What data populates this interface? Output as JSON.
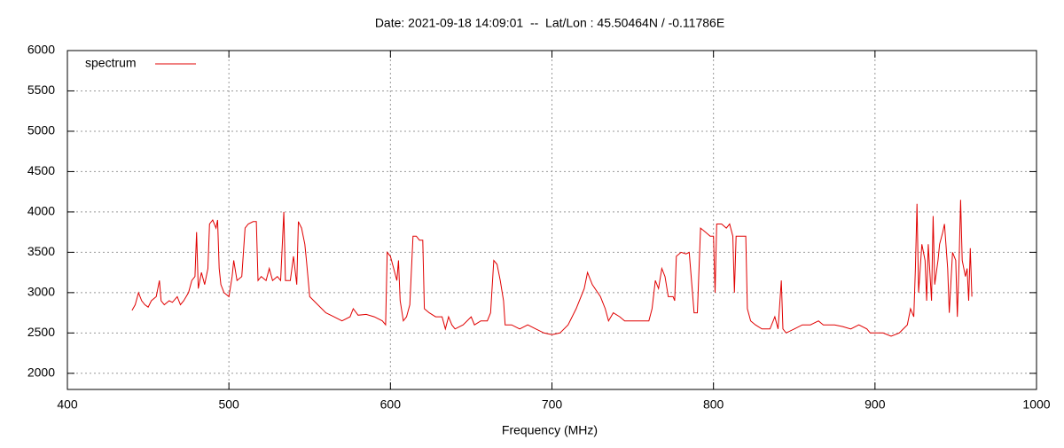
{
  "chart_data": {
    "type": "line",
    "title": "Date: 2021-09-18 14:09:01  --  Lat/Lon : 45.50464N / -0.11786E",
    "x_label": "Frequency (MHz)",
    "xlim": [
      400,
      1000
    ],
    "xticks": [
      400,
      500,
      600,
      700,
      800,
      900,
      1000
    ],
    "ylim": [
      1800,
      6000
    ],
    "yticks": [
      2000,
      2500,
      3000,
      3500,
      4000,
      4500,
      5000,
      5500,
      6000
    ],
    "grid": true,
    "legend": "top-left",
    "x": [
      440,
      442,
      444,
      446,
      448,
      450,
      452,
      455,
      457,
      458,
      460,
      463,
      465,
      468,
      470,
      472,
      475,
      477,
      479,
      480,
      481,
      483,
      485,
      487,
      488,
      490,
      492,
      493,
      494,
      495,
      497,
      500,
      502,
      503,
      505,
      508,
      510,
      512,
      515,
      517,
      518,
      520,
      523,
      525,
      527,
      530,
      532,
      534,
      535,
      538,
      540,
      542,
      543,
      545,
      547,
      548,
      550,
      555,
      560,
      565,
      570,
      575,
      577,
      580,
      585,
      590,
      595,
      597,
      598,
      600,
      602,
      604,
      605,
      606,
      608,
      610,
      612,
      614,
      616,
      618,
      620,
      621,
      624,
      628,
      632,
      634,
      636,
      638,
      640,
      645,
      650,
      652,
      656,
      660,
      662,
      664,
      666,
      668,
      670,
      671,
      675,
      680,
      685,
      690,
      695,
      700,
      705,
      710,
      715,
      720,
      722,
      725,
      730,
      733,
      735,
      738,
      742,
      745,
      750,
      755,
      760,
      762,
      764,
      766,
      768,
      770,
      772,
      775,
      776,
      777,
      780,
      783,
      785,
      787,
      788,
      790,
      792,
      795,
      798,
      800,
      801,
      802,
      805,
      808,
      810,
      812,
      813,
      814,
      818,
      820,
      821,
      823,
      826,
      830,
      835,
      838,
      840,
      842,
      843,
      845,
      850,
      855,
      860,
      865,
      868,
      875,
      880,
      885,
      890,
      895,
      897,
      900,
      905,
      910,
      915,
      920,
      922,
      924,
      925,
      926,
      927,
      929,
      931,
      932,
      933,
      935,
      936,
      937,
      939,
      940,
      942,
      943,
      945,
      946,
      948,
      950,
      951,
      952,
      953,
      954,
      956,
      957,
      958,
      959,
      960
    ],
    "series": [
      {
        "name": "spectrum",
        "color": "#e00000",
        "values": [
          2780,
          2850,
          3000,
          2900,
          2850,
          2820,
          2900,
          2950,
          3150,
          2900,
          2850,
          2900,
          2880,
          2950,
          2850,
          2900,
          3000,
          3150,
          3200,
          3750,
          3050,
          3250,
          3100,
          3300,
          3850,
          3900,
          3800,
          3900,
          3300,
          3100,
          3000,
          2950,
          3200,
          3400,
          3150,
          3200,
          3800,
          3850,
          3880,
          3880,
          3150,
          3200,
          3150,
          3300,
          3150,
          3200,
          3150,
          4000,
          3150,
          3150,
          3450,
          3100,
          3880,
          3800,
          3600,
          3400,
          2950,
          2850,
          2750,
          2700,
          2650,
          2700,
          2800,
          2720,
          2730,
          2700,
          2650,
          2600,
          3500,
          3450,
          3300,
          3150,
          3400,
          2900,
          2650,
          2700,
          2850,
          3700,
          3700,
          3650,
          3650,
          2800,
          2750,
          2700,
          2700,
          2550,
          2700,
          2600,
          2550,
          2600,
          2700,
          2600,
          2650,
          2650,
          2750,
          3400,
          3350,
          3150,
          2900,
          2600,
          2600,
          2550,
          2600,
          2550,
          2500,
          2480,
          2500,
          2600,
          2800,
          3050,
          3250,
          3100,
          2950,
          2800,
          2650,
          2750,
          2700,
          2650,
          2650,
          2650,
          2650,
          2800,
          3150,
          3050,
          3300,
          3200,
          2950,
          2950,
          2900,
          3450,
          3500,
          3480,
          3500,
          3000,
          2750,
          2750,
          3800,
          3750,
          3700,
          3700,
          3000,
          3850,
          3850,
          3800,
          3850,
          3700,
          3000,
          3700,
          3700,
          3700,
          2800,
          2650,
          2600,
          2550,
          2550,
          2700,
          2550,
          3150,
          2550,
          2500,
          2550,
          2600,
          2600,
          2650,
          2600,
          2600,
          2580,
          2550,
          2600,
          2550,
          2500,
          2500,
          2500,
          2460,
          2500,
          2600,
          2800,
          2700,
          3300,
          4100,
          3000,
          3600,
          3400,
          2900,
          3600,
          2900,
          3950,
          3100,
          3400,
          3600,
          3750,
          3850,
          3300,
          2750,
          3500,
          3400,
          2700,
          3350,
          4150,
          3400,
          3200,
          3300,
          2900,
          3550,
          2950
        ]
      }
    ]
  }
}
